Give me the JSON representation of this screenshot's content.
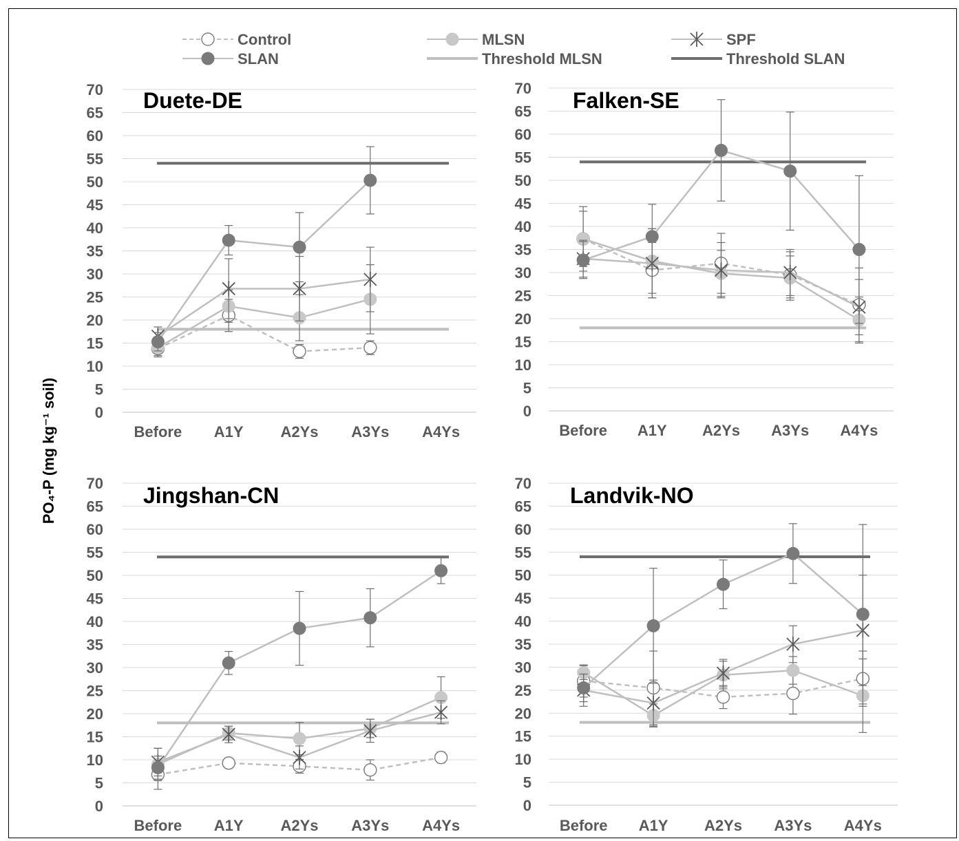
{
  "y_axis_label": "PO₄-P (mg kg⁻¹ soil)",
  "legend": [
    {
      "name": "Control",
      "style": "dashed",
      "marker": "open-circle"
    },
    {
      "name": "MLSN",
      "style": "solid",
      "marker": "light-circle"
    },
    {
      "name": "SPF",
      "style": "solid",
      "marker": "star"
    },
    {
      "name": "SLAN",
      "style": "solid",
      "marker": "dark-circle"
    },
    {
      "name": "Threshold MLSN",
      "style": "threshold-light",
      "marker": "none"
    },
    {
      "name": "Threshold SLAN",
      "style": "threshold-dark",
      "marker": "none"
    }
  ],
  "colors": {
    "series_line": "#bfbfbf",
    "control_marker_fill": "#ffffff",
    "marker_stroke": "#7f7f7f",
    "mlsn_fill": "#c8c8c8",
    "slan_fill": "#7a7a7a",
    "threshold_mlsn": "#bfbfbf",
    "threshold_slan": "#6e6e6e",
    "grid": "#d9d9d9",
    "error_bar": "#6e6e6e",
    "text": "#595959",
    "title": "#000000"
  },
  "chart_data": [
    {
      "type": "line",
      "title": "Duete-DE",
      "categories": [
        "Before",
        "A1Y",
        "A2Ys",
        "A3Ys",
        "A4Ys"
      ],
      "ylim": [
        0,
        70
      ],
      "yticks": [
        0,
        5,
        10,
        15,
        20,
        25,
        30,
        35,
        40,
        45,
        50,
        55,
        60,
        65,
        70
      ],
      "grid": true,
      "thresholds": {
        "Threshold MLSN": 18,
        "Threshold SLAN": 54
      },
      "series": [
        {
          "name": "Control",
          "values": [
            13.8,
            21,
            13.2,
            14,
            null
          ],
          "err": [
            1.5,
            3.5,
            1.5,
            1.5,
            null
          ]
        },
        {
          "name": "MLSN",
          "values": [
            14,
            23,
            20.5,
            24.5,
            null
          ],
          "err": [
            2,
            3.5,
            5,
            7.5,
            null
          ]
        },
        {
          "name": "SPF",
          "values": [
            16.5,
            26.8,
            26.8,
            28.8,
            null
          ],
          "err": [
            2,
            6.5,
            7,
            7,
            null
          ]
        },
        {
          "name": "SLAN",
          "values": [
            15.3,
            37.3,
            35.8,
            50.3,
            null
          ],
          "err": [
            2,
            3.2,
            7.5,
            7.3,
            null
          ]
        }
      ]
    },
    {
      "type": "line",
      "title": "Falken-SE",
      "categories": [
        "Before",
        "A1Y",
        "A2Ys",
        "A3Ys",
        "A4Ys"
      ],
      "ylim": [
        0,
        70
      ],
      "yticks": [
        0,
        5,
        10,
        15,
        20,
        25,
        30,
        35,
        40,
        45,
        50,
        55,
        60,
        65,
        70
      ],
      "grid": true,
      "thresholds": {
        "Threshold MLSN": 18,
        "Threshold SLAN": 54
      },
      "series": [
        {
          "name": "Control",
          "values": [
            37.3,
            30.5,
            32,
            29.5,
            23
          ],
          "err": [
            6,
            6,
            6.5,
            5,
            8
          ]
        },
        {
          "name": "MLSN",
          "values": [
            37.3,
            32.5,
            29.8,
            28.8,
            19.7
          ],
          "err": [
            7,
            7,
            5,
            4.8,
            5
          ]
        },
        {
          "name": "SPF",
          "values": [
            33,
            32,
            30.5,
            30,
            22.5
          ],
          "err": [
            4,
            7.5,
            6,
            5,
            6
          ]
        },
        {
          "name": "SLAN",
          "values": [
            32.7,
            37.8,
            56.5,
            52,
            35
          ],
          "err": [
            4,
            7,
            11,
            12.8,
            16
          ]
        }
      ]
    },
    {
      "type": "line",
      "title": "Jingshan-CN",
      "categories": [
        "Before",
        "A1Y",
        "A2Ys",
        "A3Ys",
        "A4Ys"
      ],
      "ylim": [
        0,
        70
      ],
      "yticks": [
        0,
        5,
        10,
        15,
        20,
        25,
        30,
        35,
        40,
        45,
        50,
        55,
        60,
        65,
        70
      ],
      "grid": true,
      "thresholds": {
        "Threshold MLSN": 18,
        "Threshold SLAN": 54
      },
      "series": [
        {
          "name": "Control",
          "values": [
            6.8,
            9.3,
            8.6,
            7.8,
            10.5
          ],
          "err": [
            3.2,
            1,
            1.5,
            2.2,
            1.2
          ]
        },
        {
          "name": "MLSN",
          "values": [
            9,
            15.8,
            14.6,
            16.8,
            23.5
          ],
          "err": [
            3.5,
            1.5,
            3.5,
            2,
            4.5
          ]
        },
        {
          "name": "SPF",
          "values": [
            9.5,
            15.5,
            10.5,
            16.3,
            20.3
          ],
          "err": [
            3,
            1.8,
            2.5,
            2.5,
            2.5
          ]
        },
        {
          "name": "SLAN",
          "values": [
            8.3,
            31,
            38.5,
            40.8,
            51
          ],
          "err": [
            2.5,
            2.5,
            8,
            6.3,
            2.8
          ]
        }
      ]
    },
    {
      "type": "line",
      "title": "Landvik-NO",
      "categories": [
        "Before",
        "A1Y",
        "A2Ys",
        "A3Ys",
        "A4Ys"
      ],
      "ylim": [
        0,
        70
      ],
      "yticks": [
        0,
        5,
        10,
        15,
        20,
        25,
        30,
        35,
        40,
        45,
        50,
        55,
        60,
        65,
        70
      ],
      "grid": true,
      "thresholds": {
        "Threshold MLSN": 18,
        "Threshold SLAN": 54
      },
      "series": [
        {
          "name": "Control",
          "values": [
            27,
            25.5,
            23.5,
            24.3,
            27.5
          ],
          "err": [
            3.5,
            8,
            2.5,
            4.5,
            6
          ]
        },
        {
          "name": "MLSN",
          "values": [
            28.8,
            19.5,
            28.3,
            29.3,
            23.8
          ],
          "err": [
            1.5,
            2.5,
            3,
            3,
            8
          ]
        },
        {
          "name": "SPF",
          "values": [
            25,
            22.2,
            28.7,
            35,
            38
          ],
          "err": [
            3.5,
            5,
            3,
            4,
            12
          ]
        },
        {
          "name": "SLAN",
          "values": [
            25.5,
            39,
            48,
            54.7,
            41.5
          ],
          "err": [
            3,
            12.5,
            5.3,
            6.5,
            19.5
          ]
        }
      ]
    }
  ]
}
